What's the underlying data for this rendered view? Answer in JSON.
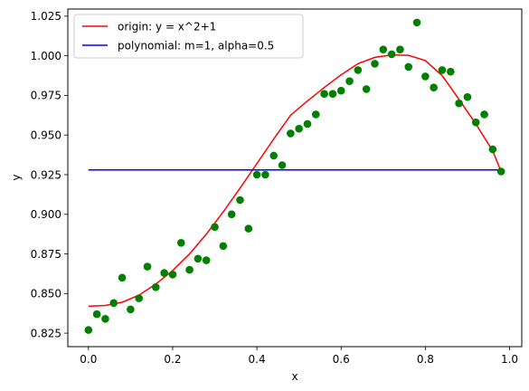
{
  "chart_data": {
    "type": "scatter",
    "xlabel": "x",
    "ylabel": "y",
    "xlim": [
      -0.049,
      1.029
    ],
    "ylim": [
      0.8165,
      1.0295
    ],
    "xticks": [
      0.0,
      0.2,
      0.4,
      0.6,
      0.8,
      1.0
    ],
    "xtick_labels": [
      "0.0",
      "0.2",
      "0.4",
      "0.6",
      "0.8",
      "1.0"
    ],
    "yticks": [
      0.825,
      0.85,
      0.875,
      0.9,
      0.925,
      0.95,
      0.975,
      1.0,
      1.025
    ],
    "ytick_labels": [
      "0.825",
      "0.850",
      "0.875",
      "0.900",
      "0.925",
      "0.950",
      "0.975",
      "1.000",
      "1.025"
    ],
    "grid": false,
    "legend_position": "top-left",
    "scatter": {
      "color": "#008000",
      "points": [
        [
          0.0,
          0.827
        ],
        [
          0.02,
          0.837
        ],
        [
          0.04,
          0.834
        ],
        [
          0.06,
          0.844
        ],
        [
          0.08,
          0.86
        ],
        [
          0.1,
          0.84
        ],
        [
          0.12,
          0.847
        ],
        [
          0.14,
          0.867
        ],
        [
          0.16,
          0.854
        ],
        [
          0.18,
          0.863
        ],
        [
          0.2,
          0.862
        ],
        [
          0.22,
          0.882
        ],
        [
          0.24,
          0.865
        ],
        [
          0.26,
          0.872
        ],
        [
          0.28,
          0.871
        ],
        [
          0.3,
          0.892
        ],
        [
          0.32,
          0.88
        ],
        [
          0.34,
          0.9
        ],
        [
          0.36,
          0.909
        ],
        [
          0.38,
          0.891
        ],
        [
          0.4,
          0.925
        ],
        [
          0.42,
          0.925
        ],
        [
          0.44,
          0.937
        ],
        [
          0.46,
          0.931
        ],
        [
          0.48,
          0.951
        ],
        [
          0.5,
          0.954
        ],
        [
          0.52,
          0.957
        ],
        [
          0.54,
          0.963
        ],
        [
          0.56,
          0.976
        ],
        [
          0.58,
          0.976
        ],
        [
          0.6,
          0.978
        ],
        [
          0.62,
          0.984
        ],
        [
          0.64,
          0.991
        ],
        [
          0.66,
          0.979
        ],
        [
          0.68,
          0.995
        ],
        [
          0.7,
          1.004
        ],
        [
          0.72,
          1.001
        ],
        [
          0.74,
          1.004
        ],
        [
          0.76,
          0.993
        ],
        [
          0.78,
          1.021
        ],
        [
          0.8,
          0.987
        ],
        [
          0.82,
          0.98
        ],
        [
          0.84,
          0.991
        ],
        [
          0.86,
          0.99
        ],
        [
          0.88,
          0.97
        ],
        [
          0.9,
          0.974
        ],
        [
          0.92,
          0.958
        ],
        [
          0.94,
          0.963
        ],
        [
          0.96,
          0.941
        ],
        [
          0.98,
          0.927
        ]
      ]
    },
    "series": [
      {
        "name": "origin: y = x^2+1",
        "color": "#ff0000",
        "x": [
          0.0,
          0.04,
          0.08,
          0.12,
          0.16,
          0.2,
          0.24,
          0.28,
          0.32,
          0.36,
          0.4,
          0.44,
          0.48,
          0.52,
          0.56,
          0.6,
          0.64,
          0.68,
          0.72,
          0.76,
          0.8,
          0.84,
          0.88,
          0.92,
          0.96,
          0.98
        ],
        "y": [
          0.842,
          0.8425,
          0.8445,
          0.849,
          0.856,
          0.8645,
          0.875,
          0.8875,
          0.9015,
          0.9165,
          0.932,
          0.9475,
          0.9625,
          0.9715,
          0.98,
          0.988,
          0.995,
          0.999,
          1.0005,
          1.0003,
          0.997,
          0.9875,
          0.9725,
          0.957,
          0.94,
          0.927
        ]
      },
      {
        "name": "polynomial: m=1, alpha=0.5",
        "color": "#0000ff",
        "x": [
          0.0,
          0.98
        ],
        "y": [
          0.928,
          0.928
        ]
      }
    ]
  }
}
